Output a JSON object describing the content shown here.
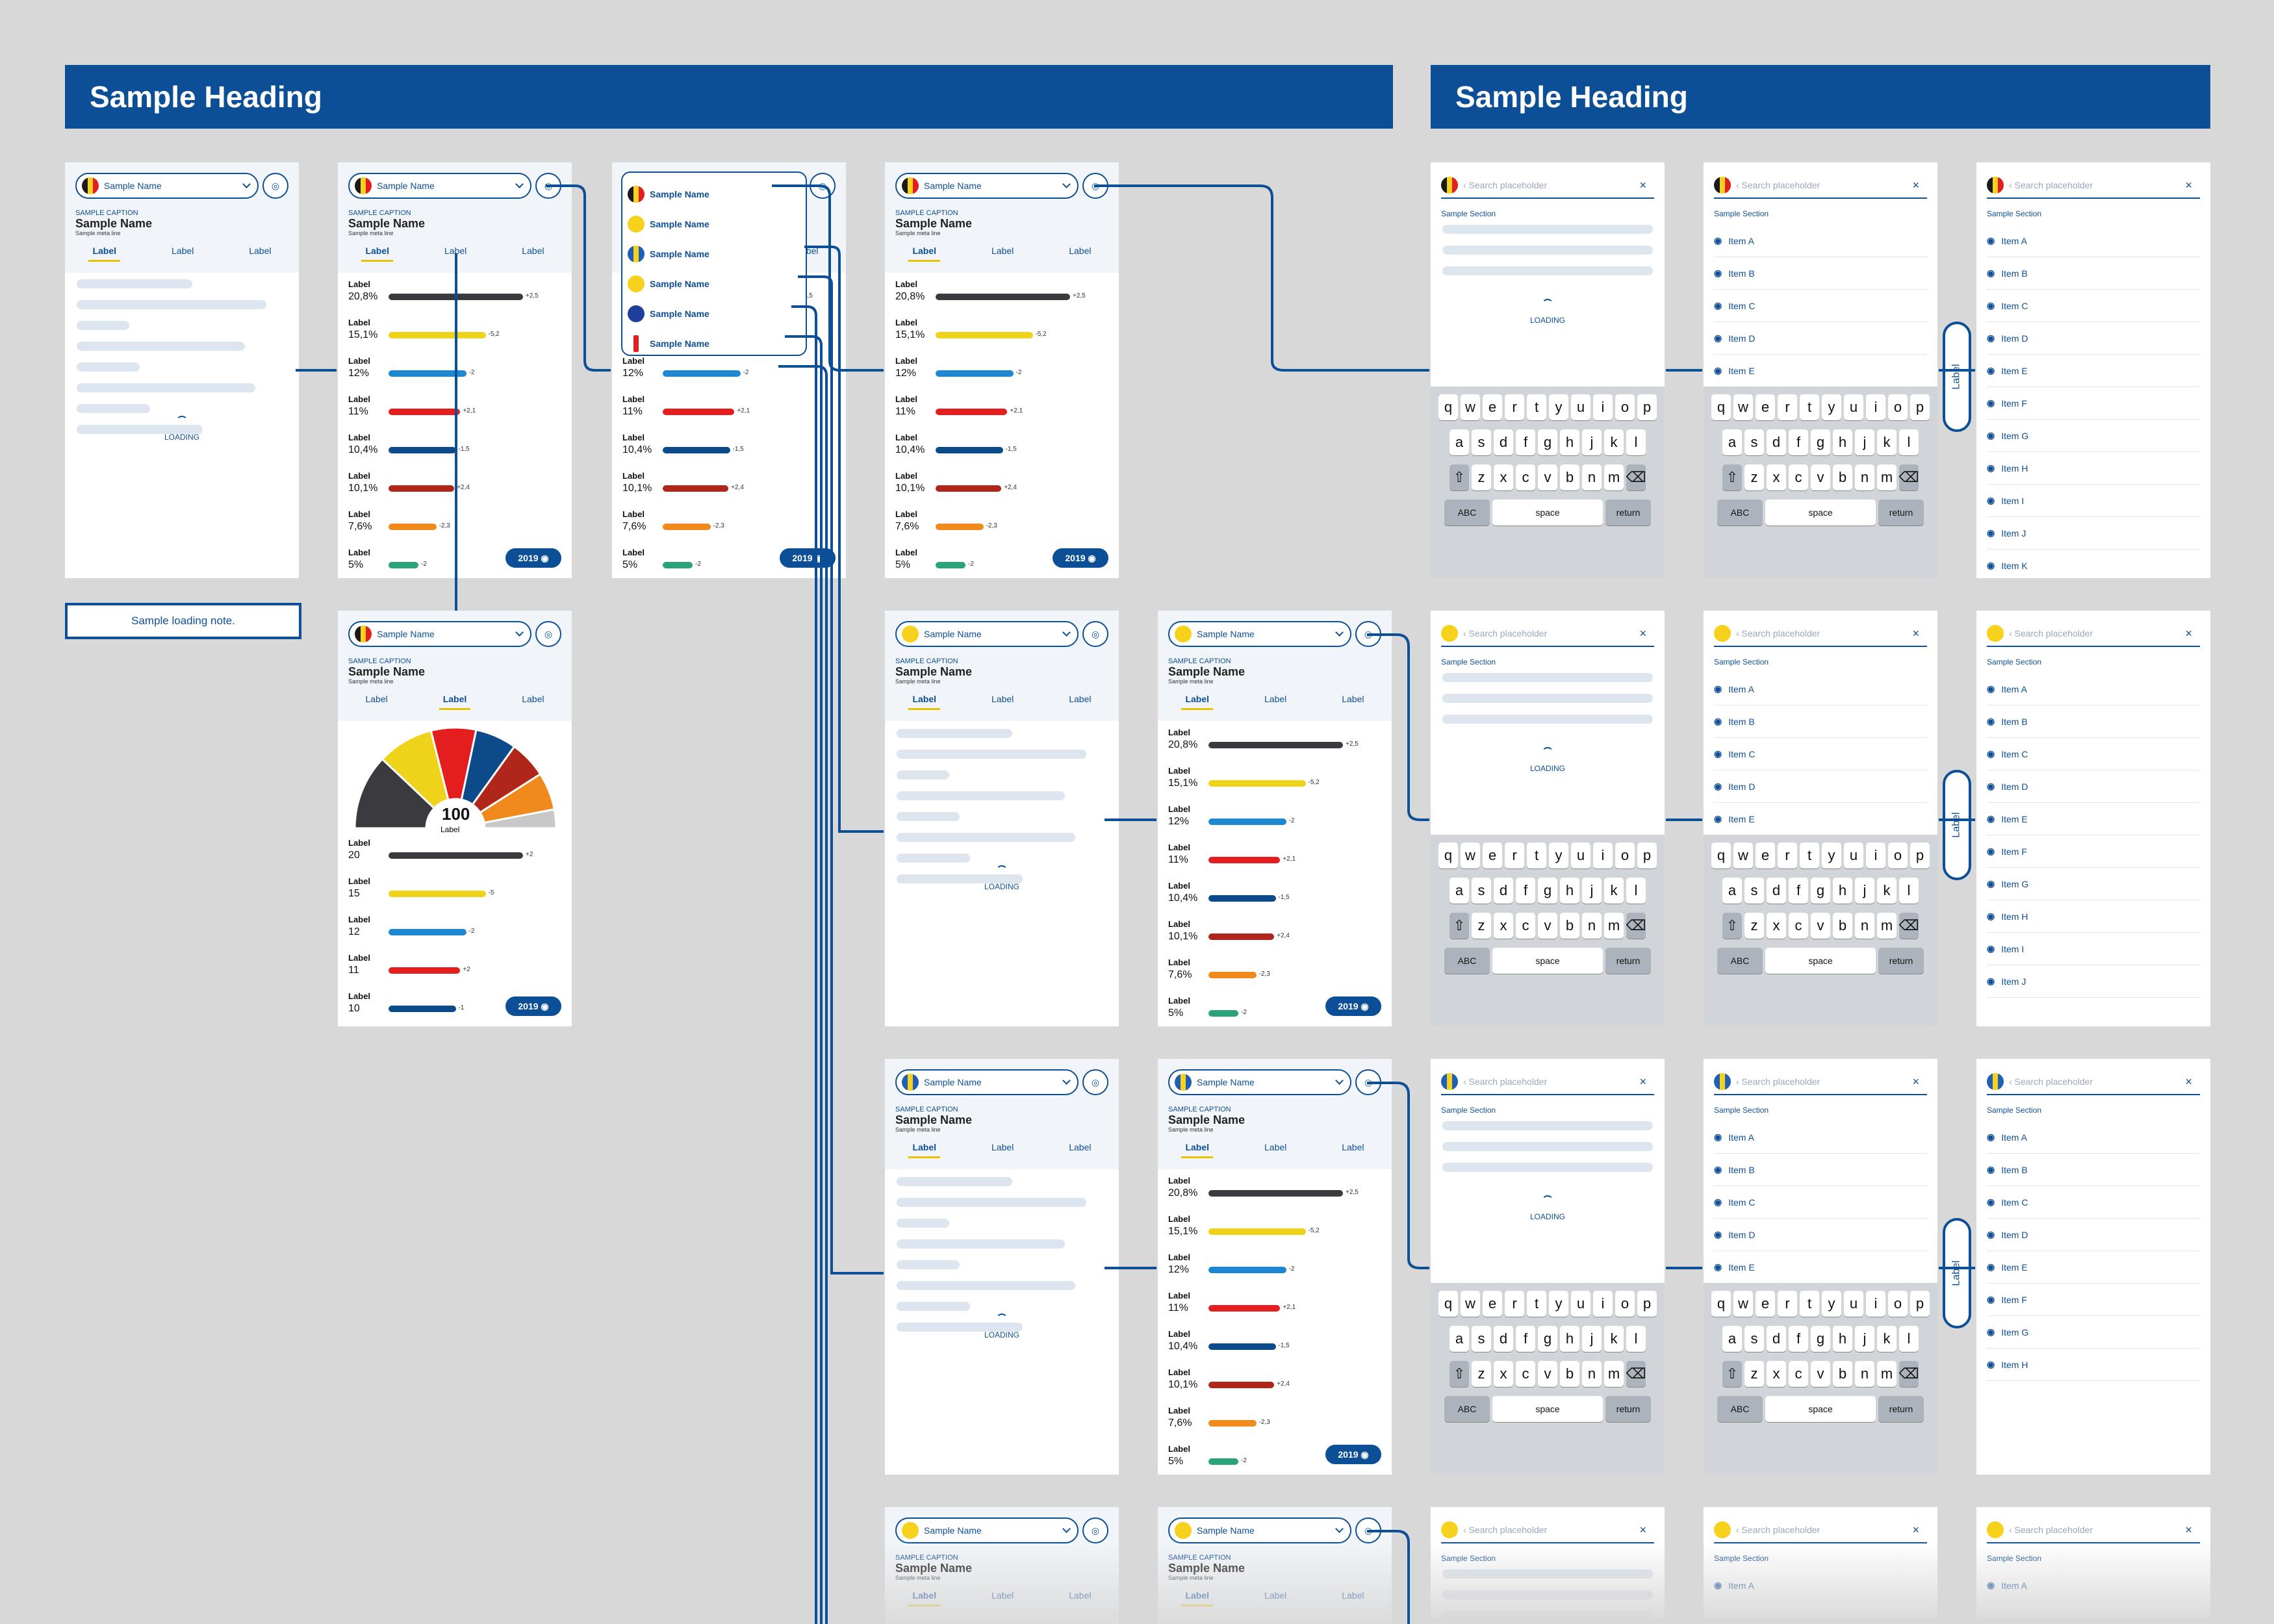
{
  "banners": [
    "Sample Heading",
    "Sample Heading"
  ],
  "note": "Sample loading note.",
  "caption": "SAMPLE CAPTION",
  "meta": "Sample meta line",
  "tabs": [
    "Label",
    "Label",
    "Label"
  ],
  "loading": "LOADING",
  "year": "2019",
  "selectors": [
    "Sample Name",
    "Sample Name",
    "Sample Name",
    "Sample Name",
    "Sample Name",
    "Sample Name"
  ],
  "parties": [
    {
      "n": "Label",
      "v": "20,8%",
      "d": "+2,5",
      "w": 0.9,
      "c": "#3a3a3f"
    },
    {
      "n": "Label",
      "v": "15,1%",
      "d": "-5,2",
      "w": 0.65,
      "c": "#efd21a"
    },
    {
      "n": "Label",
      "v": "12%",
      "d": "-2",
      "w": 0.52,
      "c": "#1f87d0"
    },
    {
      "n": "Label",
      "v": "11%",
      "d": "+2,1",
      "w": 0.48,
      "c": "#e41e1e"
    },
    {
      "n": "Label",
      "v": "10,4%",
      "d": "-1,5",
      "w": 0.45,
      "c": "#0d4a8a"
    },
    {
      "n": "Label",
      "v": "10,1%",
      "d": "+2,4",
      "w": 0.44,
      "c": "#b0261a"
    },
    {
      "n": "Label",
      "v": "7,6%",
      "d": "-2,3",
      "w": 0.32,
      "c": "#f08a1c"
    },
    {
      "n": "Label",
      "v": "5%",
      "d": "-2",
      "w": 0.2,
      "c": "#2aa27a"
    }
  ],
  "seatParties": [
    {
      "n": "Label",
      "v": "20",
      "d": "+2"
    },
    {
      "n": "Label",
      "v": "15",
      "d": "-5"
    },
    {
      "n": "Label",
      "v": "12",
      "d": "-2"
    },
    {
      "n": "Label",
      "v": "11",
      "d": "+2"
    },
    {
      "n": "Label",
      "v": "10",
      "d": "-1"
    }
  ],
  "seats": {
    "count": "100",
    "label": "Label"
  },
  "search": {
    "placeholder": "Search placeholder",
    "sec1": "Sample Section",
    "sec2": "Sample Section"
  },
  "listA": [
    "Item A",
    "Item B",
    "Item C",
    "Item D",
    "Item E",
    "Item F",
    "Item G",
    "Item H",
    "Item I",
    "Item J",
    "Item K"
  ],
  "listB": [
    "Item A",
    "Item B",
    "Item C",
    "Item D",
    "Item E",
    "Item F",
    "Item G",
    "Item H",
    "Item I",
    "Item J"
  ],
  "listC": [
    "Item A",
    "Item B",
    "Item C",
    "Item D",
    "Item E",
    "Item F",
    "Item G",
    "Item H"
  ],
  "scroll": "Label",
  "keys": [
    "q",
    "w",
    "e",
    "r",
    "t",
    "y",
    "u",
    "i",
    "o",
    "p",
    "a",
    "s",
    "d",
    "f",
    "g",
    "h",
    "j",
    "k",
    "l",
    "z",
    "x",
    "c",
    "v",
    "b",
    "n",
    "m"
  ],
  "kbLabels": {
    "abc": "ABC",
    "space": "space",
    "ret": "return"
  },
  "colors": {
    "primary": "#0d4f97",
    "accent": "#e8c400"
  }
}
